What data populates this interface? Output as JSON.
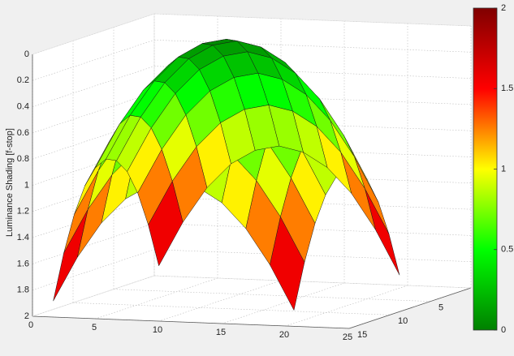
{
  "chart_data": {
    "type": "surface",
    "zlabel": "Luminance Shading [f-stop]",
    "x": [
      1,
      2.9,
      4.8,
      6.7,
      8.6,
      10.5,
      12.4,
      14.3,
      16.2,
      18.1,
      20
    ],
    "y": [
      1,
      2.3,
      3.6,
      4.9,
      6.2,
      7.5,
      8.8,
      10.1,
      11.4,
      12.7,
      14
    ],
    "z": [
      [
        1.9,
        1.56,
        1.29,
        1.1,
        0.99,
        0.95,
        0.99,
        1.1,
        1.29,
        1.56,
        1.9
      ],
      [
        1.56,
        1.22,
        0.95,
        0.76,
        0.65,
        0.61,
        0.65,
        0.76,
        0.95,
        1.22,
        1.56
      ],
      [
        1.29,
        0.95,
        0.68,
        0.49,
        0.38,
        0.34,
        0.38,
        0.49,
        0.68,
        0.95,
        1.29
      ],
      [
        1.1,
        0.76,
        0.49,
        0.3,
        0.19,
        0.15,
        0.19,
        0.3,
        0.49,
        0.76,
        1.1
      ],
      [
        0.99,
        0.65,
        0.38,
        0.19,
        0.08,
        0.04,
        0.08,
        0.19,
        0.38,
        0.65,
        0.99
      ],
      [
        0.95,
        0.61,
        0.34,
        0.15,
        0.04,
        0,
        0.04,
        0.15,
        0.34,
        0.61,
        0.95
      ],
      [
        0.99,
        0.65,
        0.38,
        0.19,
        0.08,
        0.04,
        0.08,
        0.19,
        0.38,
        0.65,
        0.99
      ],
      [
        1.1,
        0.76,
        0.49,
        0.3,
        0.19,
        0.15,
        0.19,
        0.3,
        0.49,
        0.76,
        1.1
      ],
      [
        1.29,
        0.95,
        0.68,
        0.49,
        0.38,
        0.34,
        0.38,
        0.49,
        0.68,
        0.95,
        1.29
      ],
      [
        1.56,
        1.22,
        0.95,
        0.76,
        0.65,
        0.61,
        0.65,
        0.76,
        0.95,
        1.22,
        1.56
      ],
      [
        1.9,
        1.56,
        1.29,
        1.1,
        0.99,
        0.95,
        0.99,
        1.1,
        1.29,
        1.56,
        1.9
      ]
    ],
    "xlim": [
      0,
      25
    ],
    "xticks": [
      0,
      5,
      10,
      15,
      20,
      25
    ],
    "ylim": [
      0,
      15
    ],
    "yticks": [
      0,
      5,
      10,
      15
    ],
    "zlim": [
      0,
      2
    ],
    "zticks": [
      0,
      0.2,
      0.4,
      0.6,
      0.8,
      1,
      1.2,
      1.4,
      1.6,
      1.8,
      2
    ],
    "zdir": "reverse",
    "grid": true,
    "colormap": [
      "#008000",
      "#00ff00",
      "#ffff00",
      "#ff0000",
      "#800000"
    ],
    "clim": [
      0,
      2
    ],
    "colorbar_ticks": [
      0,
      0.5,
      1,
      1.5,
      2
    ]
  }
}
